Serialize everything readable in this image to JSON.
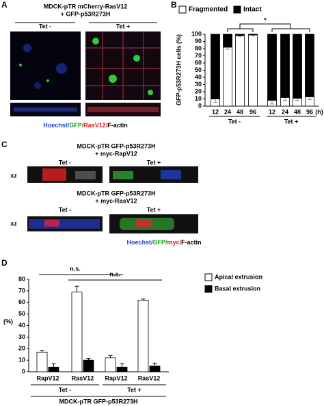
{
  "panels": {
    "A": {
      "label": "A",
      "title": [
        "MDCK-pTR mCherry-RasV12",
        "+ GFP-p53R273H"
      ],
      "image_labels": [
        "Tet -",
        "Tet +"
      ],
      "caption": [
        {
          "text": "Hoechst/",
          "color": "#1f3fd0"
        },
        {
          "text": "GFP/",
          "color": "#18a018"
        },
        {
          "text": "RasV12/",
          "color": "#e01818"
        },
        {
          "text": "F-actin",
          "color": "#000000"
        }
      ]
    },
    "C": {
      "label": "C",
      "rows": [
        {
          "title": [
            "MDCK-pTR GFP-p53R273H",
            "+ myc-RapV12"
          ],
          "image_labels": [
            "Tet -",
            "Tet +"
          ],
          "axis_label": "xz"
        },
        {
          "title": [
            "MDCK-pTR GFP-p53R273H",
            "+ myc-RasV12"
          ],
          "image_labels": [
            "Tet -",
            "Tet +"
          ],
          "axis_label": "xz"
        }
      ],
      "caption": [
        {
          "text": "Hoechst/",
          "color": "#1f3fd0"
        },
        {
          "text": "GFP/",
          "color": "#18a018"
        },
        {
          "text": "myc/",
          "color": "#e01818"
        },
        {
          "text": "F-actin",
          "color": "#000000"
        }
      ]
    }
  },
  "chart_data": [
    {
      "type": "stacked_bar",
      "panel_label": "B",
      "ylabel": "GFP-p53R273H cells (%)",
      "categories": [
        "12",
        "24",
        "48",
        "96",
        "12",
        "24",
        "48",
        "96"
      ],
      "x_unit": "(h)",
      "group_labels": [
        "Tet -",
        "Tet +"
      ],
      "series": [
        {
          "name": "Fragmented",
          "color": "#ffffff",
          "values": [
            10,
            82,
            98,
            99,
            8,
            12,
            11,
            13
          ],
          "errors": [
            5,
            3,
            1,
            1,
            5,
            4,
            3,
            4
          ]
        },
        {
          "name": "Intact",
          "color": "#000000",
          "values": [
            90,
            18,
            2,
            1,
            92,
            88,
            89,
            87
          ]
        }
      ],
      "ylim": [
        0,
        100
      ],
      "yticks": [
        0,
        10,
        20,
        30,
        40,
        50,
        60,
        70,
        80,
        90,
        100
      ],
      "annotation": "*"
    },
    {
      "type": "grouped_bar",
      "panel_label": "D",
      "ylabel": "(%)",
      "categories": [
        "RapV12",
        "RasV12",
        "RapV12",
        "RasV12"
      ],
      "group_labels": [
        "Tet -",
        "Tet +"
      ],
      "xlabel": "MDCK-pTR GFP-p53R273H",
      "series": [
        {
          "name": "Apical extrusion",
          "color": "#ffffff",
          "values": [
            17,
            69,
            12,
            62
          ],
          "errors": [
            1.5,
            5,
            2,
            1
          ]
        },
        {
          "name": "Basal extrusion",
          "color": "#000000",
          "values": [
            4,
            10,
            4,
            5
          ],
          "errors": [
            3,
            1.5,
            3,
            2.5
          ]
        }
      ],
      "ylim": [
        0,
        80
      ],
      "yticks": [
        0,
        10,
        20,
        30,
        40,
        50,
        60,
        70,
        80
      ],
      "annotations": [
        "n.s.",
        "n.s."
      ]
    }
  ]
}
